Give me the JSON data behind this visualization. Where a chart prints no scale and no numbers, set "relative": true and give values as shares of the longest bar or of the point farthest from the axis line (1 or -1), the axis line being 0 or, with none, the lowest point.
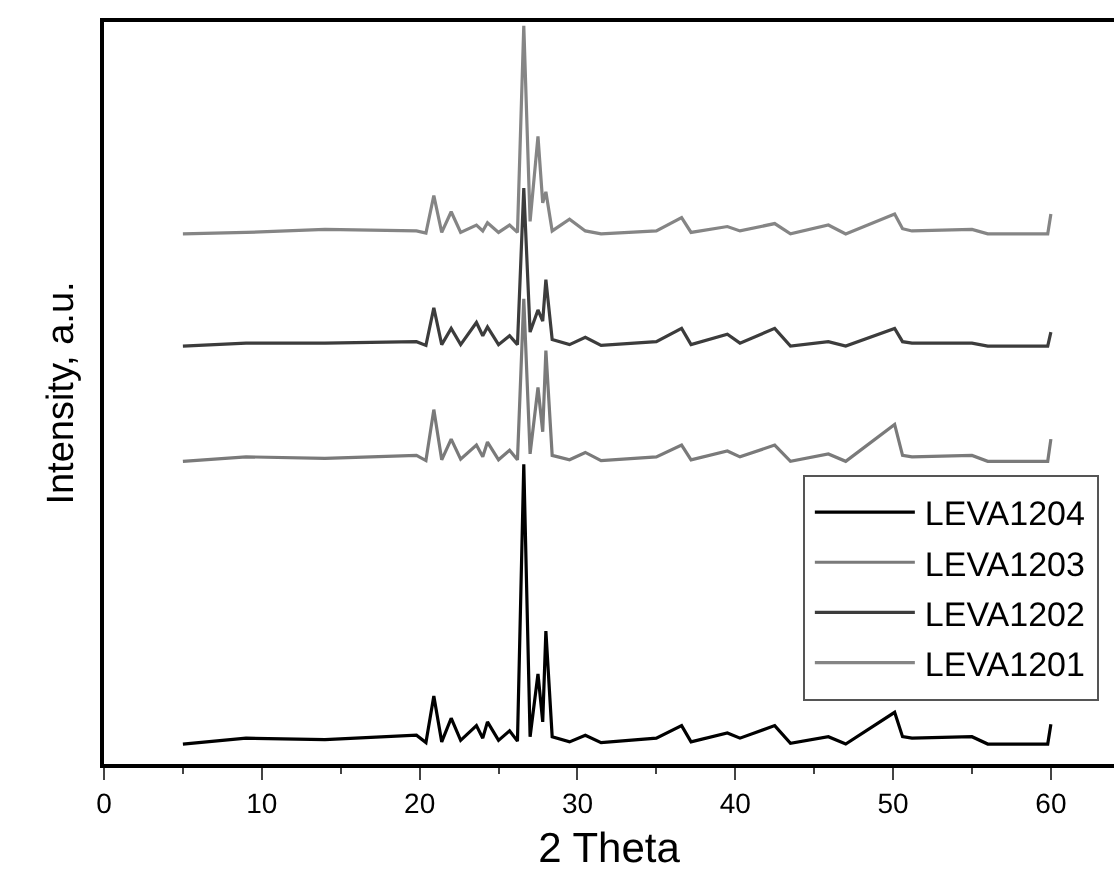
{
  "chart_data": {
    "type": "line",
    "xlabel": "2 Theta",
    "ylabel": "Intensity, a.u.",
    "relative": true,
    "xlim": [
      0,
      64
    ],
    "xticks": [
      0,
      10,
      20,
      30,
      40,
      50,
      60
    ],
    "tick_labels": "x",
    "legend": "bottom right",
    "marker": "none",
    "line_style": "solid",
    "series": [
      {
        "name": "LEVA1204",
        "color": "#000000",
        "x": [
          5,
          9,
          14,
          19.8,
          20.4,
          20.9,
          21.4,
          22.0,
          22.6,
          23.6,
          24.0,
          24.3,
          25.0,
          25.7,
          26.2,
          26.6,
          27.0,
          27.5,
          27.8,
          28.0,
          28.4,
          29.5,
          30.5,
          31.5,
          35,
          36.6,
          37.2,
          39.5,
          40.3,
          42.5,
          43.5,
          45.9,
          47,
          50.1,
          50.6,
          51.2,
          55,
          56,
          59.8,
          60
        ],
        "values": [
          0.027,
          0.035,
          0.033,
          0.039,
          0.029,
          0.092,
          0.03,
          0.062,
          0.032,
          0.052,
          0.035,
          0.057,
          0.032,
          0.045,
          0.031,
          0.406,
          0.037,
          0.122,
          0.057,
          0.18,
          0.037,
          0.03,
          0.039,
          0.029,
          0.035,
          0.052,
          0.03,
          0.042,
          0.035,
          0.052,
          0.028,
          0.037,
          0.027,
          0.07,
          0.037,
          0.035,
          0.037,
          0.027,
          0.027,
          0.054
        ]
      },
      {
        "name": "LEVA1203",
        "color": "#7a7a7a",
        "x": [
          5,
          9,
          14,
          19.8,
          20.4,
          20.9,
          21.4,
          22.0,
          22.6,
          23.6,
          24.0,
          24.3,
          25.0,
          25.7,
          26.2,
          26.6,
          27.0,
          27.5,
          27.8,
          28.0,
          28.4,
          29.5,
          30.5,
          31.5,
          35,
          36.6,
          37.2,
          39.5,
          40.3,
          42.5,
          43.5,
          45.9,
          47,
          50.1,
          50.6,
          51.2,
          55,
          56,
          59.8,
          60
        ],
        "values": [
          0.41,
          0.416,
          0.414,
          0.418,
          0.411,
          0.48,
          0.412,
          0.44,
          0.413,
          0.432,
          0.416,
          0.436,
          0.412,
          0.425,
          0.412,
          0.63,
          0.42,
          0.51,
          0.45,
          0.56,
          0.418,
          0.412,
          0.422,
          0.411,
          0.416,
          0.432,
          0.412,
          0.424,
          0.416,
          0.432,
          0.41,
          0.42,
          0.41,
          0.46,
          0.418,
          0.416,
          0.418,
          0.41,
          0.41,
          0.44
        ]
      },
      {
        "name": "LEVA1202",
        "color": "#3c3c3c",
        "x": [
          5,
          9,
          14,
          19.8,
          20.4,
          20.9,
          21.4,
          22.0,
          22.6,
          23.6,
          24.0,
          24.3,
          25.0,
          25.7,
          26.2,
          26.6,
          27.0,
          27.5,
          27.8,
          28.0,
          28.4,
          29.5,
          30.5,
          31.5,
          35,
          36.6,
          37.2,
          39.5,
          40.3,
          42.5,
          43.5,
          45.9,
          47,
          50.1,
          50.6,
          51.2,
          55,
          56,
          59.8,
          60
        ],
        "values": [
          0.566,
          0.57,
          0.57,
          0.572,
          0.567,
          0.618,
          0.568,
          0.59,
          0.568,
          0.598,
          0.58,
          0.592,
          0.568,
          0.58,
          0.568,
          0.78,
          0.585,
          0.615,
          0.6,
          0.656,
          0.575,
          0.568,
          0.578,
          0.567,
          0.572,
          0.59,
          0.568,
          0.582,
          0.57,
          0.59,
          0.566,
          0.572,
          0.566,
          0.59,
          0.572,
          0.57,
          0.57,
          0.566,
          0.566,
          0.585
        ]
      },
      {
        "name": "LEVA1201",
        "color": "#858585",
        "x": [
          5,
          9,
          14,
          19.8,
          20.4,
          20.9,
          21.4,
          22.0,
          22.6,
          23.6,
          24.0,
          24.3,
          25.0,
          25.7,
          26.2,
          26.6,
          27.0,
          27.5,
          27.8,
          28.0,
          28.4,
          29.5,
          30.5,
          31.5,
          35,
          36.6,
          37.2,
          39.5,
          40.3,
          42.5,
          43.5,
          45.9,
          47,
          50.1,
          50.6,
          51.2,
          55,
          56,
          59.8,
          60
        ],
        "values": [
          0.718,
          0.72,
          0.724,
          0.722,
          0.719,
          0.77,
          0.72,
          0.748,
          0.72,
          0.73,
          0.722,
          0.733,
          0.72,
          0.73,
          0.72,
          1.0,
          0.735,
          0.85,
          0.76,
          0.775,
          0.722,
          0.738,
          0.722,
          0.718,
          0.722,
          0.74,
          0.72,
          0.728,
          0.722,
          0.732,
          0.718,
          0.73,
          0.718,
          0.745,
          0.725,
          0.722,
          0.724,
          0.718,
          0.718,
          0.745
        ]
      }
    ]
  }
}
